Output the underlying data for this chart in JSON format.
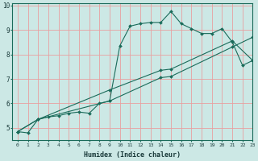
{
  "title": "",
  "xlabel": "Humidex (Indice chaleur)",
  "ylabel": "",
  "bg_color": "#cce8e5",
  "grid_color": "#e8a0a0",
  "line_color": "#1a6b5a",
  "xlim": [
    -0.5,
    23
  ],
  "ylim": [
    4.5,
    10.1
  ],
  "yticks": [
    5,
    6,
    7,
    8,
    9,
    10
  ],
  "xticks": [
    0,
    1,
    2,
    3,
    4,
    5,
    6,
    7,
    8,
    9,
    10,
    11,
    12,
    13,
    14,
    15,
    16,
    17,
    18,
    19,
    20,
    21,
    22,
    23
  ],
  "line1_x": [
    0,
    1,
    2,
    3,
    4,
    5,
    6,
    7,
    8,
    9,
    10,
    11,
    12,
    13,
    14,
    15,
    16,
    17,
    18,
    19,
    20,
    21,
    22,
    23
  ],
  "line1_y": [
    4.85,
    4.8,
    5.35,
    5.45,
    5.5,
    5.6,
    5.65,
    5.6,
    6.0,
    6.1,
    8.35,
    9.15,
    9.25,
    9.3,
    9.3,
    9.75,
    9.25,
    9.05,
    8.85,
    8.85,
    9.05,
    8.5,
    7.55,
    7.75
  ],
  "line2_x": [
    0,
    2,
    9,
    14,
    15,
    21,
    23
  ],
  "line2_y": [
    4.85,
    5.35,
    6.1,
    7.05,
    7.1,
    8.3,
    8.7
  ],
  "line3_x": [
    0,
    2,
    9,
    14,
    15,
    21,
    23
  ],
  "line3_y": [
    4.85,
    5.35,
    6.55,
    7.35,
    7.4,
    8.55,
    7.75
  ]
}
